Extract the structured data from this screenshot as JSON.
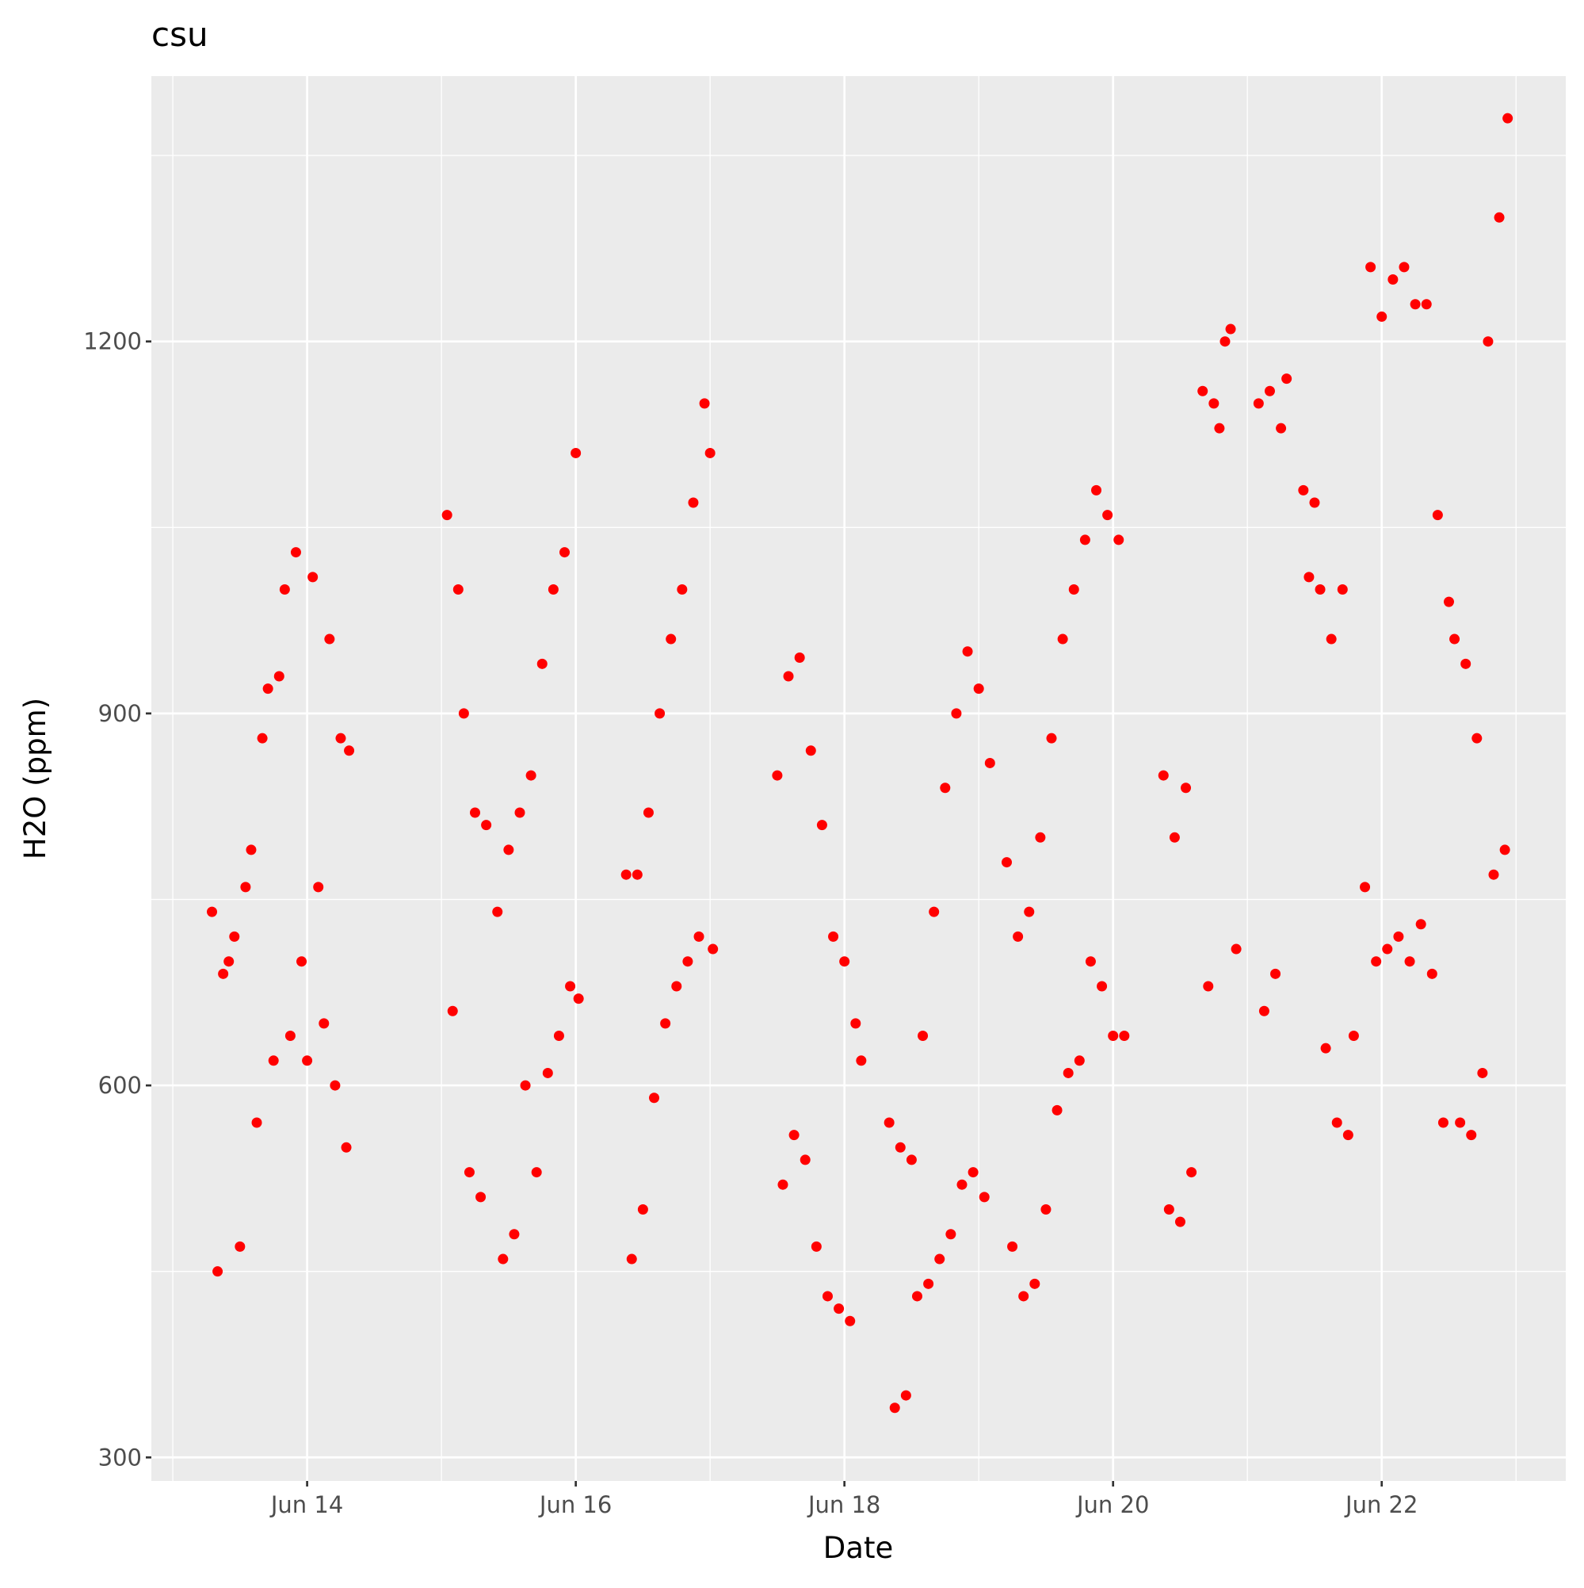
{
  "chart_data": {
    "type": "scatter",
    "title": "csu",
    "x_label": "Date",
    "y_label": "H2O (ppm)",
    "color": "#ff0000",
    "grid": true,
    "xlim": [
      "Jun 12 20:10",
      "Jun 23 08:53"
    ],
    "xticks": [
      {
        "value": "Jun 14 00:00",
        "label": "Jun 14"
      },
      {
        "value": "Jun 16 00:00",
        "label": "Jun 16"
      },
      {
        "value": "Jun 18 00:00",
        "label": "Jun 18"
      },
      {
        "value": "Jun 20 00:00",
        "label": "Jun 20"
      },
      {
        "value": "Jun 22 00:00",
        "label": "Jun 22"
      }
    ],
    "xminor": [
      "Jun 13 00:00",
      "Jun 15 00:00",
      "Jun 17 00:00",
      "Jun 19 00:00",
      "Jun 21 00:00",
      "Jun 23 00:00"
    ],
    "ylim": [
      281,
      1414
    ],
    "yticks": [
      300,
      600,
      900,
      1200
    ],
    "yminor": [
      450,
      750,
      1050,
      1350
    ],
    "x": [
      "Jun 13 07:00",
      "Jun 13 08:00",
      "Jun 13 09:00",
      "Jun 13 10:00",
      "Jun 13 11:00",
      "Jun 13 12:00",
      "Jun 13 13:00",
      "Jun 13 14:00",
      "Jun 13 15:00",
      "Jun 13 16:00",
      "Jun 13 17:00",
      "Jun 13 18:00",
      "Jun 13 19:00",
      "Jun 13 20:00",
      "Jun 13 21:00",
      "Jun 13 22:00",
      "Jun 13 23:00",
      "Jun 14 00:00",
      "Jun 14 01:00",
      "Jun 14 02:00",
      "Jun 14 03:00",
      "Jun 14 04:00",
      "Jun 14 05:00",
      "Jun 14 06:00",
      "Jun 14 07:00",
      "Jun 14 07:30",
      "Jun 15 01:00",
      "Jun 15 02:00",
      "Jun 15 03:00",
      "Jun 15 04:00",
      "Jun 15 05:00",
      "Jun 15 06:00",
      "Jun 15 07:00",
      "Jun 15 08:00",
      "Jun 15 10:00",
      "Jun 15 11:00",
      "Jun 15 12:00",
      "Jun 15 13:00",
      "Jun 15 14:00",
      "Jun 15 15:00",
      "Jun 15 16:00",
      "Jun 15 17:00",
      "Jun 15 18:00",
      "Jun 15 19:00",
      "Jun 15 20:00",
      "Jun 15 21:00",
      "Jun 15 22:00",
      "Jun 15 23:00",
      "Jun 16 00:00",
      "Jun 16 00:30",
      "Jun 16 09:00",
      "Jun 16 10:00",
      "Jun 16 11:00",
      "Jun 16 12:00",
      "Jun 16 13:00",
      "Jun 16 14:00",
      "Jun 16 15:00",
      "Jun 16 16:00",
      "Jun 16 17:00",
      "Jun 16 18:00",
      "Jun 16 19:00",
      "Jun 16 20:00",
      "Jun 16 21:00",
      "Jun 16 22:00",
      "Jun 16 23:00",
      "Jun 17 00:00",
      "Jun 17 00:30",
      "Jun 17 12:00",
      "Jun 17 13:00",
      "Jun 17 14:00",
      "Jun 17 15:00",
      "Jun 17 16:00",
      "Jun 17 17:00",
      "Jun 17 18:00",
      "Jun 17 19:00",
      "Jun 17 20:00",
      "Jun 17 21:00",
      "Jun 17 22:00",
      "Jun 17 23:00",
      "Jun 18 00:00",
      "Jun 18 01:00",
      "Jun 18 02:00",
      "Jun 18 03:00",
      "Jun 18 08:00",
      "Jun 18 09:00",
      "Jun 18 10:00",
      "Jun 18 11:00",
      "Jun 18 12:00",
      "Jun 18 13:00",
      "Jun 18 14:00",
      "Jun 18 15:00",
      "Jun 18 16:00",
      "Jun 18 17:00",
      "Jun 18 18:00",
      "Jun 18 19:00",
      "Jun 18 20:00",
      "Jun 18 21:00",
      "Jun 18 22:00",
      "Jun 18 23:00",
      "Jun 19 00:00",
      "Jun 19 01:00",
      "Jun 19 02:00",
      "Jun 19 05:00",
      "Jun 19 06:00",
      "Jun 19 07:00",
      "Jun 19 08:00",
      "Jun 19 09:00",
      "Jun 19 10:00",
      "Jun 19 11:00",
      "Jun 19 12:00",
      "Jun 19 13:00",
      "Jun 19 14:00",
      "Jun 19 15:00",
      "Jun 19 16:00",
      "Jun 19 17:00",
      "Jun 19 18:00",
      "Jun 19 19:00",
      "Jun 19 20:00",
      "Jun 19 21:00",
      "Jun 19 22:00",
      "Jun 19 23:00",
      "Jun 20 00:00",
      "Jun 20 01:00",
      "Jun 20 02:00",
      "Jun 20 09:00",
      "Jun 20 10:00",
      "Jun 20 11:00",
      "Jun 20 12:00",
      "Jun 20 13:00",
      "Jun 20 14:00",
      "Jun 20 16:00",
      "Jun 20 17:00",
      "Jun 20 18:00",
      "Jun 20 19:00",
      "Jun 20 20:00",
      "Jun 20 21:00",
      "Jun 20 22:00",
      "Jun 21 02:00",
      "Jun 21 03:00",
      "Jun 21 04:00",
      "Jun 21 05:00",
      "Jun 21 06:00",
      "Jun 21 07:00",
      "Jun 21 10:00",
      "Jun 21 11:00",
      "Jun 21 12:00",
      "Jun 21 13:00",
      "Jun 21 14:00",
      "Jun 21 15:00",
      "Jun 21 16:00",
      "Jun 21 17:00",
      "Jun 21 18:00",
      "Jun 21 19:00",
      "Jun 21 21:00",
      "Jun 21 22:00",
      "Jun 21 23:00",
      "Jun 22 00:00",
      "Jun 22 01:00",
      "Jun 22 02:00",
      "Jun 22 03:00",
      "Jun 22 04:00",
      "Jun 22 05:00",
      "Jun 22 06:00",
      "Jun 22 07:00",
      "Jun 22 08:00",
      "Jun 22 09:00",
      "Jun 22 10:00",
      "Jun 22 11:00",
      "Jun 22 12:00",
      "Jun 22 13:00",
      "Jun 22 14:00",
      "Jun 22 15:00",
      "Jun 22 16:00",
      "Jun 22 17:00",
      "Jun 22 18:00",
      "Jun 22 19:00",
      "Jun 22 20:00",
      "Jun 22 21:00",
      "Jun 22 22:00",
      "Jun 22 22:30"
    ],
    "values": [
      740,
      450,
      690,
      700,
      720,
      470,
      760,
      790,
      570,
      880,
      920,
      620,
      930,
      1000,
      640,
      1030,
      700,
      620,
      1010,
      760,
      650,
      960,
      600,
      880,
      550,
      870,
      1060,
      660,
      1000,
      900,
      530,
      820,
      510,
      810,
      740,
      460,
      790,
      480,
      820,
      600,
      850,
      530,
      940,
      610,
      1000,
      640,
      1030,
      680,
      1110,
      670,
      770,
      460,
      770,
      500,
      820,
      590,
      900,
      650,
      960,
      680,
      1000,
      700,
      1070,
      720,
      1150,
      1110,
      710,
      850,
      520,
      930,
      560,
      945,
      540,
      870,
      470,
      810,
      430,
      720,
      420,
      700,
      410,
      650,
      620,
      570,
      340,
      550,
      350,
      540,
      430,
      640,
      440,
      740,
      460,
      840,
      480,
      900,
      520,
      950,
      530,
      920,
      510,
      860,
      780,
      470,
      720,
      430,
      740,
      440,
      800,
      500,
      880,
      580,
      960,
      610,
      1000,
      620,
      1040,
      700,
      1080,
      680,
      1060,
      640,
      1040,
      640,
      850,
      500,
      800,
      490,
      840,
      530,
      1160,
      680,
      1150,
      1130,
      1200,
      1210,
      710,
      1150,
      660,
      1160,
      690,
      1130,
      1170,
      1080,
      1010,
      1070,
      1000,
      630,
      960,
      570,
      1000,
      560,
      640,
      760,
      1260,
      700,
      1220,
      710,
      1250,
      720,
      1260,
      700,
      1230,
      730,
      1230,
      690,
      1060,
      570,
      990,
      960,
      570,
      940,
      560,
      880,
      610,
      1200,
      770,
      1300,
      790,
      1380
    ]
  }
}
